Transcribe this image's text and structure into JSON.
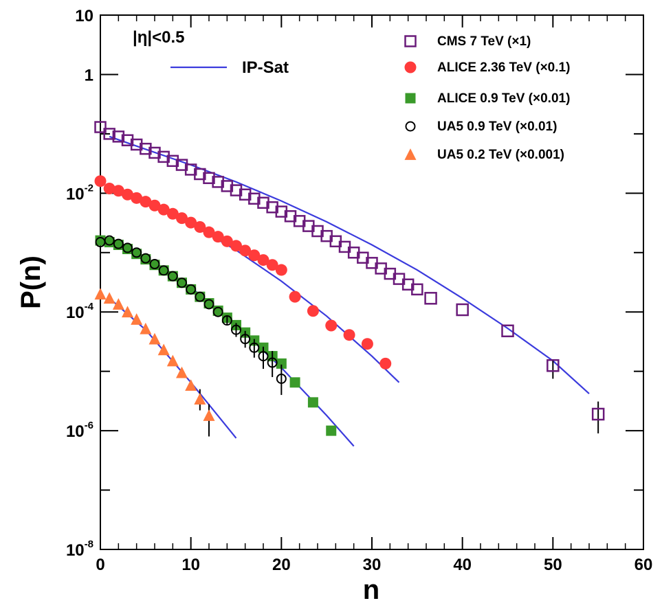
{
  "chart_data": {
    "type": "scatter",
    "title": "",
    "xlabel": "n",
    "ylabel": "P(n)",
    "xlim": [
      0,
      60
    ],
    "ylim": [
      1e-08,
      10
    ],
    "yscale": "log",
    "grid": false,
    "legend_position": "top-right",
    "x_ticks": [
      "0",
      "10",
      "20",
      "30",
      "40",
      "50",
      "60"
    ],
    "y_ticks": [
      {
        "base": "10",
        "exp": "-8"
      },
      {
        "base": "10",
        "exp": "-6"
      },
      {
        "base": "10",
        "exp": "-4"
      },
      {
        "base": "10",
        "exp": "-2"
      },
      {
        "base": "1",
        "exp": ""
      },
      {
        "base": "10",
        "exp": ""
      }
    ],
    "annotation": "|η|<0.5",
    "series": [
      {
        "name": "CMS 7 TeV (×1)",
        "marker": "open-square",
        "color": "#6a1b7a",
        "x": [
          0,
          1,
          2,
          3,
          4,
          5,
          6,
          7,
          8,
          9,
          10,
          11,
          12,
          13,
          14,
          15,
          16,
          17,
          18,
          19,
          20,
          21,
          22,
          23,
          24,
          25,
          26,
          27,
          28,
          29,
          30,
          31,
          32,
          33,
          34,
          35,
          36.5,
          40,
          45,
          50,
          55
        ],
        "y": [
          0.13,
          0.1,
          0.09,
          0.078,
          0.066,
          0.056,
          0.048,
          0.041,
          0.035,
          0.03,
          0.025,
          0.021,
          0.018,
          0.0155,
          0.0132,
          0.0112,
          0.0095,
          0.0081,
          0.0069,
          0.0058,
          0.0049,
          0.0041,
          0.0034,
          0.0028,
          0.0023,
          0.0019,
          0.00155,
          0.00125,
          0.001,
          0.00082,
          0.00067,
          0.00054,
          0.00044,
          0.00036,
          0.00029,
          0.00024,
          0.00017,
          0.000109,
          4.8e-05,
          1.25e-05,
          1.9e-06
        ],
        "err_low": [
          null,
          null,
          null,
          null,
          null,
          null,
          null,
          null,
          null,
          null,
          null,
          null,
          null,
          null,
          null,
          null,
          null,
          null,
          null,
          null,
          null,
          null,
          null,
          null,
          null,
          null,
          null,
          null,
          null,
          null,
          null,
          null,
          null,
          null,
          null,
          null,
          null,
          null,
          null,
          7.5e-06,
          9e-07
        ],
        "err_high": [
          null,
          null,
          null,
          null,
          null,
          null,
          null,
          null,
          null,
          null,
          null,
          null,
          null,
          null,
          null,
          null,
          null,
          null,
          null,
          null,
          null,
          null,
          null,
          null,
          null,
          null,
          null,
          null,
          null,
          null,
          null,
          null,
          null,
          null,
          null,
          null,
          null,
          null,
          null,
          1.6e-05,
          3.1e-06
        ]
      },
      {
        "name": "ALICE 2.36 TeV (×0.1)",
        "marker": "filled-circle",
        "color": "#ff3b3b",
        "x": [
          0,
          1,
          2,
          3,
          4,
          5,
          6,
          7,
          8,
          9,
          10,
          11,
          12,
          13,
          14,
          15,
          16,
          17,
          18,
          19,
          20,
          21.5,
          23.5,
          25.5,
          27.5,
          29.5,
          31.5
        ],
        "y": [
          0.016,
          0.012,
          0.011,
          0.0095,
          0.0083,
          0.0072,
          0.0062,
          0.0053,
          0.0045,
          0.0038,
          0.0032,
          0.0027,
          0.0022,
          0.00185,
          0.00155,
          0.0013,
          0.00108,
          0.0009,
          0.00075,
          0.00062,
          0.00051,
          0.00018,
          0.000104,
          5.9e-05,
          4.1e-05,
          2.9e-05,
          1.35e-05
        ]
      },
      {
        "name": "ALICE 0.9 TeV (×0.01)",
        "marker": "filled-square",
        "color": "#3a9a2a",
        "x": [
          0,
          1,
          2,
          3,
          4,
          5,
          6,
          7,
          8,
          9,
          10,
          11,
          12,
          13,
          14,
          15,
          16,
          17,
          18,
          19,
          20,
          21.5,
          23.5,
          25.5
        ],
        "y": [
          0.0016,
          0.0015,
          0.00135,
          0.00115,
          0.00095,
          0.00077,
          0.00062,
          0.0005,
          0.0004,
          0.00031,
          0.00024,
          0.00018,
          0.00014,
          0.000105,
          8e-05,
          6e-05,
          4.5e-05,
          3.3e-05,
          2.5e-05,
          1.8e-05,
          1.35e-05,
          6.5e-06,
          3e-06,
          1e-06
        ]
      },
      {
        "name": "UA5 0.9 TeV (×0.01)",
        "marker": "open-circle",
        "color": "#000000",
        "x": [
          0,
          1,
          2,
          3,
          4,
          5,
          6,
          7,
          8,
          9,
          10,
          11,
          12,
          13,
          14,
          15,
          16,
          17,
          18,
          19,
          20
        ],
        "y": [
          0.0015,
          0.0016,
          0.0014,
          0.0012,
          0.001,
          0.0008,
          0.00064,
          0.0005,
          0.0004,
          0.00031,
          0.00024,
          0.00018,
          0.000135,
          0.0001,
          7.2e-05,
          5e-05,
          3.5e-05,
          2.5e-05,
          1.8e-05,
          1.4e-05,
          7.5e-06
        ],
        "err_low": [
          null,
          null,
          null,
          null,
          null,
          null,
          null,
          null,
          null,
          null,
          null,
          null,
          null,
          null,
          6e-05,
          3.8e-05,
          2.5e-05,
          1.7e-05,
          1.1e-05,
          8e-06,
          4e-06
        ],
        "err_high": [
          null,
          null,
          null,
          null,
          null,
          null,
          null,
          null,
          null,
          null,
          null,
          null,
          null,
          null,
          8.5e-05,
          6.5e-05,
          4.8e-05,
          3.5e-05,
          2.6e-05,
          2.2e-05,
          1.3e-05
        ]
      },
      {
        "name": "UA5 0.2 TeV (×0.001)",
        "marker": "filled-triangle",
        "color": "#ff7a3d",
        "x": [
          0,
          1,
          2,
          3,
          4,
          5,
          6,
          7,
          8,
          9,
          10,
          11,
          12
        ],
        "y": [
          0.0002,
          0.00017,
          0.000135,
          0.0001,
          7.5e-05,
          5.2e-05,
          3.5e-05,
          2.3e-05,
          1.5e-05,
          9.5e-06,
          5.8e-06,
          3.4e-06,
          1.8e-06
        ],
        "err_low": [
          null,
          null,
          null,
          null,
          null,
          null,
          null,
          null,
          null,
          null,
          null,
          2.2e-06,
          8e-07
        ],
        "err_high": [
          null,
          null,
          null,
          null,
          null,
          null,
          null,
          null,
          null,
          null,
          null,
          5e-06,
          2.8e-06
        ]
      }
    ],
    "curves": [
      {
        "name": "IP-Sat",
        "color": "#3b3bdd",
        "segments": [
          {
            "x": [
              1,
              5,
              10,
              15,
              20,
              25,
              30,
              35,
              40,
              45,
              50,
              54
            ],
            "y": [
              0.09,
              0.055,
              0.03,
              0.0155,
              0.0074,
              0.0033,
              0.00135,
              0.00051,
              0.00017,
              5.3e-05,
              1.5e-05,
              4.2e-06
            ]
          },
          {
            "x": [
              1,
              5,
              10,
              15,
              20,
              25,
              30,
              33
            ],
            "y": [
              0.011,
              0.0067,
              0.003,
              0.0011,
              0.00033,
              8.5e-05,
              1.8e-05,
              6.5e-06
            ]
          },
          {
            "x": [
              1,
              5,
              10,
              15,
              20,
              25,
              28
            ],
            "y": [
              0.0015,
              0.0008,
              0.00026,
              6e-05,
              1.15e-05,
              1.8e-06,
              5.5e-07
            ]
          },
          {
            "x": [
              1,
              5,
              10,
              15
            ],
            "y": [
              0.00017,
              5e-05,
              6.5e-06,
              7.5e-07
            ]
          }
        ]
      }
    ]
  }
}
